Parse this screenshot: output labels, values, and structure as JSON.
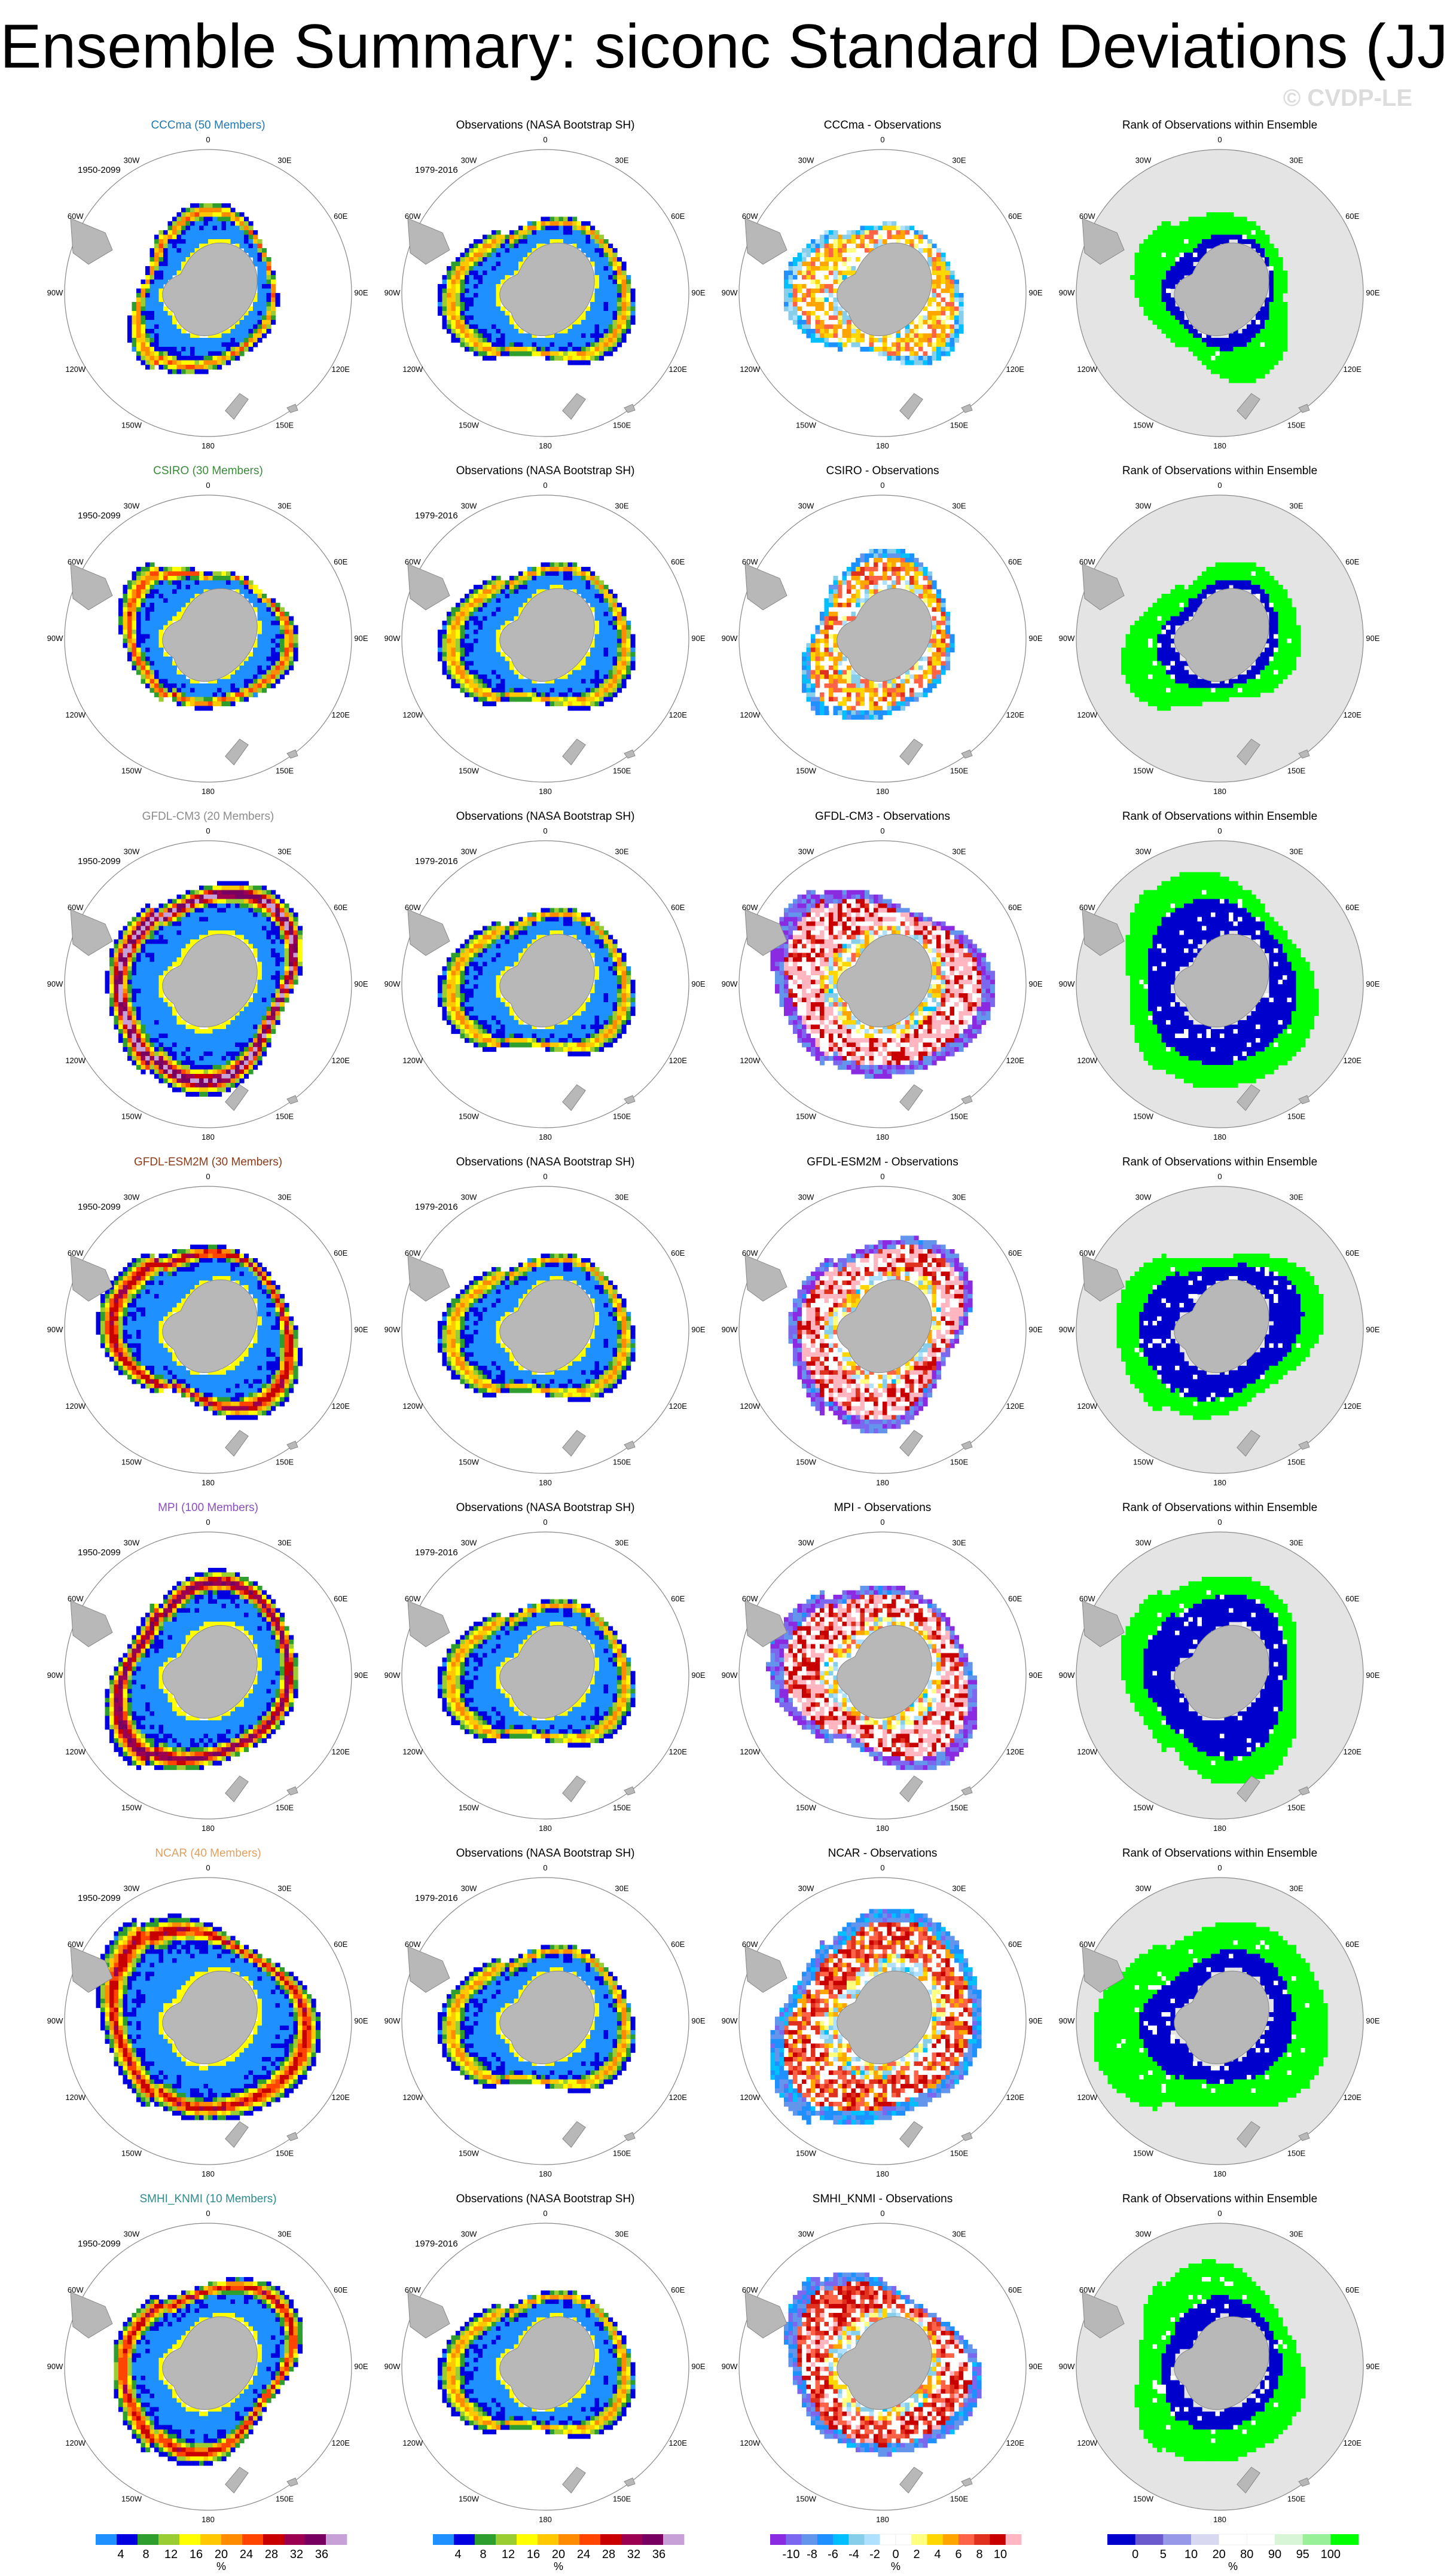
{
  "header": {
    "title": "Ensemble Summary: siconc Standard Deviations (JJA)",
    "copyright": "© CVDP-LE"
  },
  "chart_data": {
    "type": "heatmap",
    "projection": "south polar stereographic",
    "variable": "siconc",
    "season": "JJA",
    "column_titles": {
      "observations": "Observations (NASA Bootstrap SH)",
      "difference_suffix": " - Observations",
      "rank": "Rank of Observations within Ensemble"
    },
    "periods": {
      "model": "1950-2099",
      "observations": "1979-2016"
    },
    "longitude_labels": [
      "0",
      "30E",
      "60E",
      "90E",
      "120E",
      "150E",
      "180",
      "150W",
      "120W",
      "90W",
      "60W",
      "30W"
    ],
    "rows": [
      {
        "model": "CCCma",
        "members": 50,
        "title": "CCCma (50 Members)",
        "diff_title": "CCCma - Observations",
        "title_color": "#1f77b4",
        "spread": 0.85,
        "peak": 0.55,
        "bias": 0.15,
        "rank_high": 0.45
      },
      {
        "model": "CSIRO",
        "members": 30,
        "title": "CSIRO (30 Members)",
        "diff_title": "CSIRO - Observations",
        "title_color": "#3a8a3a",
        "spread": 0.85,
        "peak": 0.6,
        "bias": 0.3,
        "rank_high": 0.5
      },
      {
        "model": "GFDL-CM3",
        "members": 20,
        "title": "GFDL-CM3 (20 Members)",
        "diff_title": "GFDL-CM3 - Observations",
        "title_color": "#8c8c8c",
        "spread": 1.1,
        "peak": 0.95,
        "bias": 0.9,
        "rank_high": 0.85
      },
      {
        "model": "GFDL-ESM2M",
        "members": 30,
        "title": "GFDL-ESM2M (30 Members)",
        "diff_title": "GFDL-ESM2M - Observations",
        "title_color": "#8b3a1a",
        "spread": 1.0,
        "peak": 0.75,
        "bias": 0.85,
        "rank_high": 0.85
      },
      {
        "model": "MPI",
        "members": 100,
        "title": "MPI (100 Members)",
        "diff_title": "MPI - Observations",
        "title_color": "#8a4fc0",
        "spread": 1.05,
        "peak": 0.85,
        "bias": 0.85,
        "rank_high": 0.85
      },
      {
        "model": "NCAR",
        "members": 40,
        "title": "NCAR (40 Members)",
        "diff_title": "NCAR - Observations",
        "title_color": "#e0a060",
        "spread": 1.15,
        "peak": 0.7,
        "bias": 0.5,
        "rank_high": 0.6
      },
      {
        "model": "SMHI_KNMI",
        "members": 10,
        "title": "SMHI_KNMI (10 Members)",
        "diff_title": "SMHI_KNMI - Observations",
        "title_color": "#2e8b8b",
        "spread": 1.0,
        "peak": 0.7,
        "bias": 0.6,
        "rank_high": 0.55
      }
    ],
    "colorbars": [
      {
        "name": "std",
        "unit": "%",
        "labels": [
          "4",
          "8",
          "12",
          "16",
          "20",
          "24",
          "28",
          "32",
          "36"
        ],
        "colors": [
          "#1e90ff",
          "#0000e0",
          "#2e9e2e",
          "#9acd32",
          "#ffff00",
          "#ffc800",
          "#ff8c00",
          "#ff4500",
          "#c80000",
          "#9c0050",
          "#780060",
          "#c8a0d8"
        ]
      },
      {
        "name": "std_obs",
        "unit": "%",
        "labels": [
          "4",
          "8",
          "12",
          "16",
          "20",
          "24",
          "28",
          "32",
          "36"
        ],
        "colors": [
          "#1e90ff",
          "#0000e0",
          "#2e9e2e",
          "#9acd32",
          "#ffff00",
          "#ffc800",
          "#ff8c00",
          "#ff4500",
          "#c80000",
          "#9c0050",
          "#780060",
          "#c8a0d8"
        ]
      },
      {
        "name": "difference",
        "unit": "%",
        "labels": [
          "-10",
          "-8",
          "-6",
          "-4",
          "-2",
          "0",
          "2",
          "4",
          "6",
          "8",
          "10"
        ],
        "colors": [
          "#8a2be2",
          "#7b68ee",
          "#6495ed",
          "#1e90ff",
          "#00bfff",
          "#87ceeb",
          "#b0e0ff",
          "#ffffff",
          "#ffffff",
          "#ffff80",
          "#ffd700",
          "#ffa500",
          "#ff6347",
          "#e0301e",
          "#c80000",
          "#ffb6c1"
        ]
      },
      {
        "name": "rank",
        "unit": "%",
        "labels": [
          "0",
          "5",
          "10",
          "20",
          "80",
          "90",
          "95",
          "100"
        ],
        "colors": [
          "#0000cd",
          "#6a5acd",
          "#9898e8",
          "#d8d8f0",
          "#ffffff",
          "#ffffff",
          "#d8f5d8",
          "#98f098",
          "#00ff00"
        ]
      }
    ]
  }
}
